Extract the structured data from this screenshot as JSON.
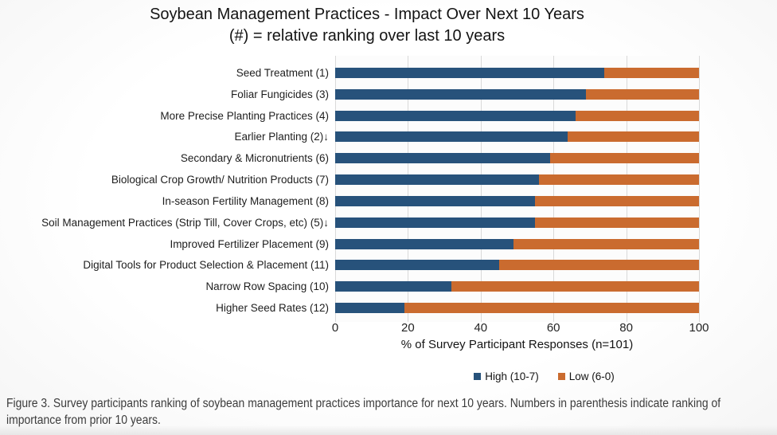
{
  "title": {
    "line1": "Soybean Management Practices - Impact Over Next 10 Years",
    "line2": "(#) = relative ranking over last 10 years"
  },
  "chart_data": {
    "type": "bar",
    "orientation": "horizontal",
    "stacked": true,
    "categories": [
      "Seed Treatment (1)",
      "Foliar Fungicides (3)",
      "More Precise Planting Practices (4)",
      "Earlier Planting (2)↓",
      "Secondary & Micronutrients (6)",
      "Biological Crop Growth/ Nutrition Products (7)",
      "In-season Fertility Management (8)",
      "Soil Management Practices (Strip Till, Cover Crops, etc) (5)↓",
      "Improved Fertilizer Placement (9)",
      "Digital Tools for Product Selection & Placement (11)",
      "Narrow Row Spacing (10)",
      "Higher Seed Rates (12)"
    ],
    "series": [
      {
        "name": "High (10-7)",
        "color": "#27527B",
        "values": [
          74,
          69,
          66,
          64,
          59,
          56,
          55,
          55,
          49,
          45,
          32,
          19
        ]
      },
      {
        "name": "Low (6-0)",
        "color": "#CA6B2F",
        "values": [
          26,
          31,
          34,
          36,
          41,
          44,
          45,
          45,
          51,
          55,
          68,
          81
        ]
      }
    ],
    "xlabel": "% of Survey Participant Responses (n=101)",
    "x_ticks": [
      0,
      20,
      40,
      60,
      80,
      100
    ],
    "xlim": [
      0,
      100
    ],
    "grid": true,
    "gridline_color": "#D9D9D9",
    "legend_position": "bottom"
  },
  "caption": {
    "text": "Figure 3. Survey participants ranking of soybean management practices importance for next 10 years. Numbers in parenthesis indicate ranking of importance from prior 10 years."
  }
}
